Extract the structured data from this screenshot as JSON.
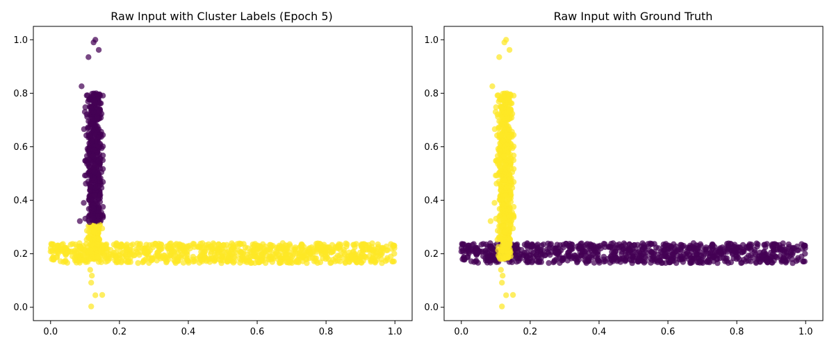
{
  "chart_data": [
    {
      "type": "scatter",
      "title": "Raw Input with Cluster Labels (Epoch 5)",
      "xlim": [
        -0.05,
        1.05
      ],
      "ylim": [
        -0.05,
        1.05
      ],
      "x_ticks": [
        0.0,
        0.2,
        0.4,
        0.6,
        0.8,
        1.0
      ],
      "y_ticks": [
        0.0,
        0.2,
        0.4,
        0.6,
        0.8,
        1.0
      ],
      "x_tick_labels": [
        "0.0",
        "0.2",
        "0.4",
        "0.6",
        "0.8",
        "1.0"
      ],
      "y_tick_labels": [
        "0.0",
        "0.2",
        "0.4",
        "0.6",
        "0.8",
        "1.0"
      ],
      "grid": false,
      "color_map": {
        "0": "#440154",
        "1": "#fde725"
      },
      "clusters": {
        "vertical": {
          "x_range": [
            0.09,
            0.15
          ],
          "y_range": [
            0.0,
            1.0
          ],
          "label_above_0_31": 0,
          "label_below_0_31": 1
        },
        "horizontal": {
          "x_range": [
            0.0,
            1.0
          ],
          "y_range": [
            0.165,
            0.24
          ],
          "label": 1
        }
      },
      "outliers": [
        {
          "x": 0.13,
          "y": 1.0,
          "label": 0
        },
        {
          "x": 0.125,
          "y": 0.99,
          "label": 0
        },
        {
          "x": 0.14,
          "y": 0.962,
          "label": 0
        },
        {
          "x": 0.11,
          "y": 0.935,
          "label": 0
        },
        {
          "x": 0.09,
          "y": 0.826,
          "label": 0
        },
        {
          "x": 0.085,
          "y": 0.322,
          "label": 0
        },
        {
          "x": 0.115,
          "y": 0.14,
          "label": 1
        },
        {
          "x": 0.12,
          "y": 0.118,
          "label": 1
        },
        {
          "x": 0.118,
          "y": 0.092,
          "label": 1
        },
        {
          "x": 0.13,
          "y": 0.045,
          "label": 1
        },
        {
          "x": 0.15,
          "y": 0.046,
          "label": 1
        },
        {
          "x": 0.118,
          "y": 0.003,
          "label": 1
        }
      ]
    },
    {
      "type": "scatter",
      "title": "Raw Input with Ground Truth",
      "xlim": [
        -0.05,
        1.05
      ],
      "ylim": [
        -0.05,
        1.05
      ],
      "x_ticks": [
        0.0,
        0.2,
        0.4,
        0.6,
        0.8,
        1.0
      ],
      "y_ticks": [
        0.0,
        0.2,
        0.4,
        0.6,
        0.8,
        1.0
      ],
      "x_tick_labels": [
        "0.0",
        "0.2",
        "0.4",
        "0.6",
        "0.8",
        "1.0"
      ],
      "y_tick_labels": [
        "0.0",
        "0.2",
        "0.4",
        "0.6",
        "0.8",
        "1.0"
      ],
      "grid": false,
      "color_map": {
        "0": "#440154",
        "1": "#fde725"
      },
      "clusters": {
        "vertical": {
          "x_range": [
            0.09,
            0.15
          ],
          "y_range": [
            0.0,
            1.0
          ],
          "label": 1
        },
        "horizontal": {
          "x_range": [
            0.0,
            1.0
          ],
          "y_range": [
            0.165,
            0.24
          ],
          "label": 0
        }
      },
      "outliers": [
        {
          "x": 0.13,
          "y": 1.0,
          "label": 1
        },
        {
          "x": 0.125,
          "y": 0.99,
          "label": 1
        },
        {
          "x": 0.14,
          "y": 0.962,
          "label": 1
        },
        {
          "x": 0.11,
          "y": 0.935,
          "label": 1
        },
        {
          "x": 0.09,
          "y": 0.826,
          "label": 1
        },
        {
          "x": 0.085,
          "y": 0.322,
          "label": 1
        },
        {
          "x": 0.115,
          "y": 0.14,
          "label": 1
        },
        {
          "x": 0.12,
          "y": 0.118,
          "label": 1
        },
        {
          "x": 0.118,
          "y": 0.092,
          "label": 1
        },
        {
          "x": 0.13,
          "y": 0.045,
          "label": 1
        },
        {
          "x": 0.15,
          "y": 0.046,
          "label": 1
        },
        {
          "x": 0.118,
          "y": 0.003,
          "label": 1
        }
      ]
    }
  ]
}
